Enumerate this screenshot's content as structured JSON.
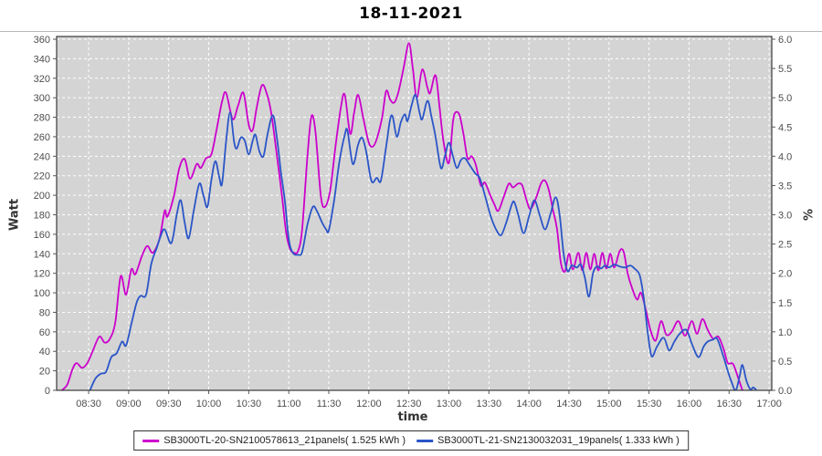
{
  "title": "18-11-2021",
  "axes": {
    "x": {
      "label": "time",
      "start_minutes": 510,
      "step_minutes": 30,
      "tick_labels": [
        "08:30",
        "09:00",
        "09:30",
        "10:00",
        "10:30",
        "11:00",
        "11:30",
        "12:00",
        "12:30",
        "13:00",
        "13:30",
        "14:00",
        "14:30",
        "15:00",
        "15:30",
        "16:00",
        "16:30",
        "17:00"
      ]
    },
    "y_left": {
      "label": "Watt",
      "min": 0,
      "max": 360,
      "step": 20
    },
    "y_right": {
      "label": "%",
      "min": 0.0,
      "max": 6.0,
      "step": 0.5
    }
  },
  "legend": {
    "entries": [
      {
        "label": "SB3000TL-20-SN2100578613_21panels( 1.525 kWh )",
        "color": "#cc00cc"
      },
      {
        "label": "SB3000TL-21-SN2130032031_19panels( 1.333 kWh )",
        "color": "#2a55c8"
      }
    ]
  },
  "chart_data": {
    "type": "line",
    "title": "18-11-2021",
    "xlabel": "time",
    "ylabel_left": "Watt",
    "ylabel_right": "%",
    "x_range": [
      "08:06",
      "17:02"
    ],
    "ylim_left": [
      0,
      360
    ],
    "ylim_right": [
      0.0,
      6.0
    ],
    "grid": true,
    "plot_bg": "#d4d4d4",
    "grid_color": "#ffffff",
    "series": [
      {
        "name": "SB3000TL-20-SN2100578613_21panels( 1.525 kWh )",
        "color": "#cc00cc",
        "energy_kwh": 1.525,
        "unit": "W",
        "points": [
          [
            "08:10",
            0
          ],
          [
            "08:14",
            6
          ],
          [
            "08:18",
            22
          ],
          [
            "08:21",
            28
          ],
          [
            "08:25",
            23
          ],
          [
            "08:29",
            28
          ],
          [
            "08:33",
            40
          ],
          [
            "08:38",
            55
          ],
          [
            "08:42",
            49
          ],
          [
            "08:46",
            53
          ],
          [
            "08:50",
            70
          ],
          [
            "08:54",
            117
          ],
          [
            "08:58",
            98
          ],
          [
            "09:02",
            124
          ],
          [
            "09:05",
            119
          ],
          [
            "09:10",
            138
          ],
          [
            "09:14",
            148
          ],
          [
            "09:18",
            141
          ],
          [
            "09:23",
            155
          ],
          [
            "09:27",
            184
          ],
          [
            "09:29",
            178
          ],
          [
            "09:34",
            200
          ],
          [
            "09:38",
            228
          ],
          [
            "09:42",
            237
          ],
          [
            "09:46",
            217
          ],
          [
            "09:51",
            232
          ],
          [
            "09:54",
            228
          ],
          [
            "09:58",
            238
          ],
          [
            "10:02",
            242
          ],
          [
            "10:06",
            268
          ],
          [
            "10:10",
            296
          ],
          [
            "10:13",
            305
          ],
          [
            "10:18",
            278
          ],
          [
            "10:22",
            292
          ],
          [
            "10:26",
            305
          ],
          [
            "10:30",
            272
          ],
          [
            "10:33",
            267
          ],
          [
            "10:36",
            290
          ],
          [
            "10:40",
            313
          ],
          [
            "10:44",
            302
          ],
          [
            "10:47",
            283
          ],
          [
            "10:51",
            242
          ],
          [
            "10:55",
            198
          ],
          [
            "10:58",
            162
          ],
          [
            "11:01",
            145
          ],
          [
            "11:04",
            141
          ],
          [
            "11:07",
            143
          ],
          [
            "11:10",
            165
          ],
          [
            "11:14",
            240
          ],
          [
            "11:17",
            281
          ],
          [
            "11:20",
            265
          ],
          [
            "11:24",
            200
          ],
          [
            "11:27",
            188
          ],
          [
            "11:31",
            205
          ],
          [
            "11:35",
            250
          ],
          [
            "11:39",
            290
          ],
          [
            "11:42",
            303
          ],
          [
            "11:46",
            263
          ],
          [
            "11:49",
            285
          ],
          [
            "11:52",
            303
          ],
          [
            "11:56",
            278
          ],
          [
            "12:00",
            254
          ],
          [
            "12:03",
            250
          ],
          [
            "12:06",
            258
          ],
          [
            "12:10",
            280
          ],
          [
            "12:13",
            307
          ],
          [
            "12:16",
            298
          ],
          [
            "12:19",
            295
          ],
          [
            "12:22",
            305
          ],
          [
            "12:26",
            330
          ],
          [
            "12:30",
            356
          ],
          [
            "12:33",
            330
          ],
          [
            "12:36",
            300
          ],
          [
            "12:40",
            329
          ],
          [
            "12:44",
            310
          ],
          [
            "12:46",
            305
          ],
          [
            "12:50",
            323
          ],
          [
            "12:53",
            290
          ],
          [
            "12:56",
            255
          ],
          [
            "13:00",
            233
          ],
          [
            "13:03",
            275
          ],
          [
            "13:05",
            285
          ],
          [
            "13:08",
            282
          ],
          [
            "13:11",
            262
          ],
          [
            "13:14",
            238
          ],
          [
            "13:17",
            240
          ],
          [
            "13:20",
            232
          ],
          [
            "13:24",
            210
          ],
          [
            "13:27",
            213
          ],
          [
            "13:31",
            200
          ],
          [
            "13:34",
            191
          ],
          [
            "13:37",
            184
          ],
          [
            "13:41",
            198
          ],
          [
            "13:45",
            212
          ],
          [
            "13:48",
            208
          ],
          [
            "13:52",
            212
          ],
          [
            "13:55",
            210
          ],
          [
            "13:58",
            196
          ],
          [
            "14:01",
            186
          ],
          [
            "14:05",
            196
          ],
          [
            "14:09",
            212
          ],
          [
            "14:12",
            215
          ],
          [
            "14:15",
            205
          ],
          [
            "14:18",
            185
          ],
          [
            "14:21",
            166
          ],
          [
            "14:24",
            130
          ],
          [
            "14:27",
            122
          ],
          [
            "14:30",
            140
          ],
          [
            "14:33",
            124
          ],
          [
            "14:37",
            141
          ],
          [
            "14:40",
            123
          ],
          [
            "14:43",
            141
          ],
          [
            "14:46",
            124
          ],
          [
            "14:49",
            140
          ],
          [
            "14:52",
            123
          ],
          [
            "14:55",
            141
          ],
          [
            "14:58",
            125
          ],
          [
            "15:01",
            140
          ],
          [
            "15:04",
            126
          ],
          [
            "15:08",
            143
          ],
          [
            "15:11",
            142
          ],
          [
            "15:14",
            120
          ],
          [
            "15:17",
            106
          ],
          [
            "15:21",
            93
          ],
          [
            "15:24",
            100
          ],
          [
            "15:28",
            80
          ],
          [
            "15:31",
            62
          ],
          [
            "15:35",
            51
          ],
          [
            "15:39",
            71
          ],
          [
            "15:43",
            57
          ],
          [
            "15:47",
            60
          ],
          [
            "15:52",
            71
          ],
          [
            "15:57",
            56
          ],
          [
            "16:02",
            71
          ],
          [
            "16:06",
            58
          ],
          [
            "16:10",
            73
          ],
          [
            "16:14",
            62
          ],
          [
            "16:18",
            53
          ],
          [
            "16:22",
            55
          ],
          [
            "16:26",
            42
          ],
          [
            "16:29",
            28
          ],
          [
            "16:33",
            27
          ],
          [
            "16:37",
            12
          ],
          [
            "16:40",
            0
          ]
        ]
      },
      {
        "name": "SB3000TL-21-SN2130032031_19panels( 1.333 kWh )",
        "color": "#2a55c8",
        "energy_kwh": 1.333,
        "unit": "W",
        "points": [
          [
            "08:31",
            0
          ],
          [
            "08:35",
            12
          ],
          [
            "08:39",
            17
          ],
          [
            "08:43",
            19
          ],
          [
            "08:47",
            34
          ],
          [
            "08:51",
            38
          ],
          [
            "08:55",
            50
          ],
          [
            "08:58",
            46
          ],
          [
            "09:02",
            68
          ],
          [
            "09:06",
            90
          ],
          [
            "09:09",
            97
          ],
          [
            "09:13",
            98
          ],
          [
            "09:17",
            130
          ],
          [
            "09:21",
            146
          ],
          [
            "09:24",
            158
          ],
          [
            "09:27",
            165
          ],
          [
            "09:32",
            151
          ],
          [
            "09:36",
            180
          ],
          [
            "09:39",
            195
          ],
          [
            "09:42",
            172
          ],
          [
            "09:45",
            156
          ],
          [
            "09:49",
            186
          ],
          [
            "09:53",
            212
          ],
          [
            "09:56",
            200
          ],
          [
            "09:59",
            188
          ],
          [
            "10:02",
            216
          ],
          [
            "10:05",
            235
          ],
          [
            "10:08",
            218
          ],
          [
            "10:10",
            212
          ],
          [
            "10:13",
            255
          ],
          [
            "10:16",
            285
          ],
          [
            "10:19",
            255
          ],
          [
            "10:21",
            248
          ],
          [
            "10:24",
            259
          ],
          [
            "10:27",
            256
          ],
          [
            "10:30",
            242
          ],
          [
            "10:33",
            256
          ],
          [
            "10:35",
            262
          ],
          [
            "10:38",
            245
          ],
          [
            "10:41",
            240
          ],
          [
            "10:44",
            262
          ],
          [
            "10:48",
            282
          ],
          [
            "10:51",
            260
          ],
          [
            "10:54",
            225
          ],
          [
            "10:57",
            195
          ],
          [
            "11:00",
            155
          ],
          [
            "11:03",
            141
          ],
          [
            "11:07",
            139
          ],
          [
            "11:10",
            142
          ],
          [
            "11:14",
            170
          ],
          [
            "11:18",
            188
          ],
          [
            "11:21",
            184
          ],
          [
            "11:25",
            172
          ],
          [
            "11:28",
            165
          ],
          [
            "11:30",
            164
          ],
          [
            "11:34",
            195
          ],
          [
            "11:38",
            235
          ],
          [
            "11:42",
            262
          ],
          [
            "11:44",
            266
          ],
          [
            "11:48",
            232
          ],
          [
            "11:52",
            252
          ],
          [
            "11:55",
            259
          ],
          [
            "11:58",
            245
          ],
          [
            "12:01",
            220
          ],
          [
            "12:03",
            213
          ],
          [
            "12:06",
            218
          ],
          [
            "12:09",
            215
          ],
          [
            "12:13",
            250
          ],
          [
            "12:16",
            278
          ],
          [
            "12:18",
            280
          ],
          [
            "12:21",
            260
          ],
          [
            "12:24",
            275
          ],
          [
            "12:27",
            283
          ],
          [
            "12:29",
            276
          ],
          [
            "12:32",
            292
          ],
          [
            "12:35",
            303
          ],
          [
            "12:38",
            285
          ],
          [
            "12:40",
            278
          ],
          [
            "12:44",
            297
          ],
          [
            "12:47",
            280
          ],
          [
            "12:50",
            260
          ],
          [
            "12:54",
            228
          ],
          [
            "12:57",
            240
          ],
          [
            "13:00",
            254
          ],
          [
            "13:03",
            240
          ],
          [
            "13:06",
            228
          ],
          [
            "13:09",
            236
          ],
          [
            "13:12",
            238
          ],
          [
            "13:16",
            230
          ],
          [
            "13:20",
            222
          ],
          [
            "13:23",
            218
          ],
          [
            "13:27",
            200
          ],
          [
            "13:31",
            180
          ],
          [
            "13:35",
            166
          ],
          [
            "13:39",
            159
          ],
          [
            "13:43",
            172
          ],
          [
            "13:47",
            190
          ],
          [
            "13:49",
            193
          ],
          [
            "13:52",
            180
          ],
          [
            "13:56",
            161
          ],
          [
            "14:00",
            178
          ],
          [
            "14:04",
            195
          ],
          [
            "14:08",
            180
          ],
          [
            "14:12",
            165
          ],
          [
            "14:16",
            180
          ],
          [
            "14:20",
            198
          ],
          [
            "14:23",
            180
          ],
          [
            "14:26",
            140
          ],
          [
            "14:29",
            122
          ],
          [
            "14:32",
            128
          ],
          [
            "14:36",
            126
          ],
          [
            "14:39",
            129
          ],
          [
            "14:42",
            115
          ],
          [
            "14:45",
            96
          ],
          [
            "14:48",
            120
          ],
          [
            "14:51",
            127
          ],
          [
            "14:54",
            125
          ],
          [
            "14:57",
            128
          ],
          [
            "15:00",
            126
          ],
          [
            "15:04",
            129
          ],
          [
            "15:08",
            127
          ],
          [
            "15:12",
            126
          ],
          [
            "15:16",
            128
          ],
          [
            "15:19",
            125
          ],
          [
            "15:23",
            118
          ],
          [
            "15:26",
            95
          ],
          [
            "15:29",
            60
          ],
          [
            "15:32",
            35
          ],
          [
            "15:36",
            45
          ],
          [
            "15:41",
            54
          ],
          [
            "15:45",
            41
          ],
          [
            "15:49",
            50
          ],
          [
            "15:53",
            58
          ],
          [
            "15:58",
            62
          ],
          [
            "16:02",
            48
          ],
          [
            "16:07",
            34
          ],
          [
            "16:11",
            45
          ],
          [
            "16:14",
            50
          ],
          [
            "16:18",
            52
          ],
          [
            "16:21",
            53
          ],
          [
            "16:25",
            38
          ],
          [
            "16:29",
            20
          ],
          [
            "16:32",
            8
          ],
          [
            "16:35",
            0
          ],
          [
            "16:38",
            15
          ],
          [
            "16:40",
            26
          ],
          [
            "16:43",
            10
          ],
          [
            "16:46",
            1
          ],
          [
            "16:48",
            3
          ],
          [
            "16:50",
            1
          ]
        ]
      }
    ]
  }
}
